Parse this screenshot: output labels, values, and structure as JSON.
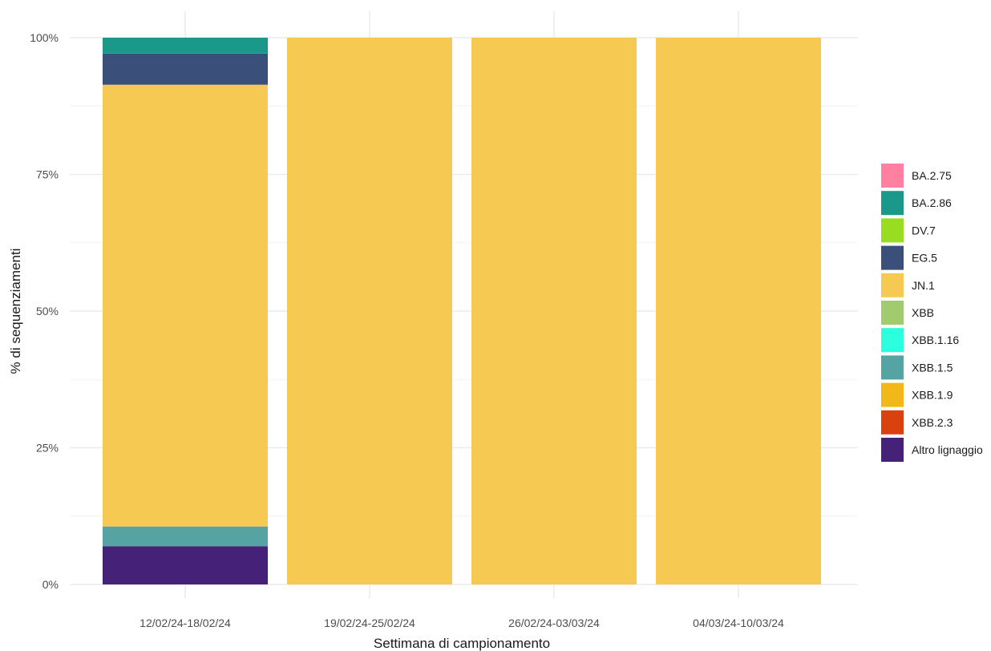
{
  "chart_data": {
    "type": "bar",
    "stacked": true,
    "xlabel": "Settimana di campionamento",
    "ylabel": "% di sequenziamenti",
    "ylim": [
      0,
      100
    ],
    "yticks": [
      0,
      25,
      50,
      75,
      100
    ],
    "ytick_labels": [
      "0%",
      "25%",
      "50%",
      "75%",
      "100%"
    ],
    "grid": true,
    "legend_position": "right",
    "categories": [
      "12/02/24-18/02/24",
      "19/02/24-25/02/24",
      "26/02/24-03/03/24",
      "04/03/24-10/03/24"
    ],
    "series": [
      {
        "name": "BA.2.75",
        "color": "#FF80A0",
        "values": [
          0,
          0,
          0,
          0
        ]
      },
      {
        "name": "BA.2.86",
        "color": "#1A998A",
        "values": [
          2.9,
          0,
          0,
          0
        ]
      },
      {
        "name": "DV.7",
        "color": "#99DD22",
        "values": [
          0,
          0,
          0,
          0
        ]
      },
      {
        "name": "EG.5",
        "color": "#3B4F7B",
        "values": [
          5.7,
          0,
          0,
          0
        ]
      },
      {
        "name": "JN.1",
        "color": "#F5C952",
        "values": [
          80.8,
          100,
          100,
          100
        ]
      },
      {
        "name": "XBB",
        "color": "#A2CB70",
        "values": [
          0,
          0,
          0,
          0
        ]
      },
      {
        "name": "XBB.1.16",
        "color": "#2BFFDD",
        "values": [
          0,
          0,
          0,
          0
        ]
      },
      {
        "name": "XBB.1.5",
        "color": "#56A3A3",
        "values": [
          3.6,
          0,
          0,
          0
        ]
      },
      {
        "name": "XBB.1.9",
        "color": "#F2B81A",
        "values": [
          0,
          0,
          0,
          0
        ]
      },
      {
        "name": "XBB.2.3",
        "color": "#D9420F",
        "values": [
          0,
          0,
          0,
          0
        ]
      },
      {
        "name": "Altro lignaggio",
        "color": "#452277",
        "values": [
          7.0,
          0,
          0,
          0
        ]
      }
    ]
  }
}
